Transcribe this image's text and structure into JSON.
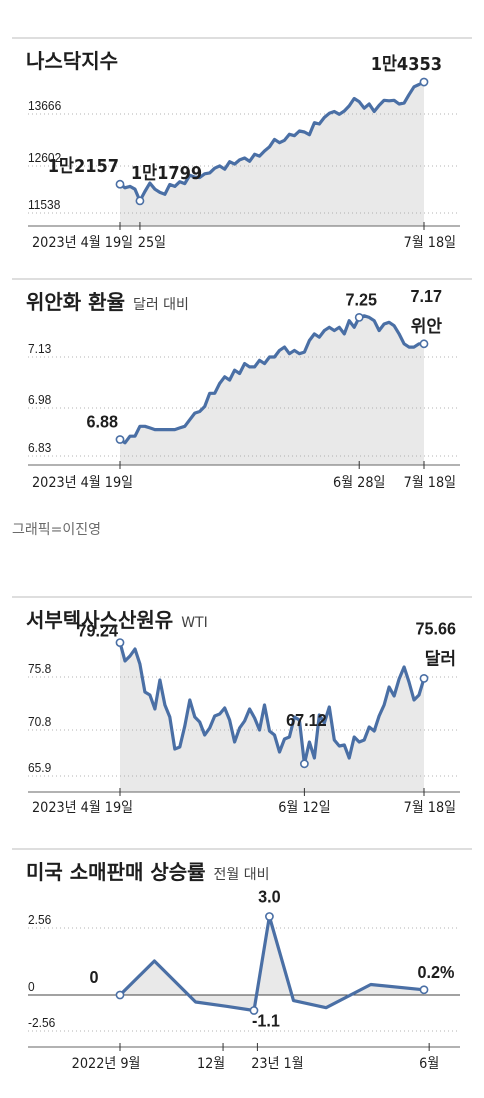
{
  "credit": "그래픽=이진영",
  "chart_data": [
    {
      "type": "area",
      "title": "나스닥지수",
      "subtitle": "",
      "ylim": [
        11200,
        14500
      ],
      "yticks": [
        13666,
        12602,
        11538
      ],
      "ytick_labels": [
        "13666",
        "12602",
        "11538"
      ],
      "x_labels": [
        {
          "text": "2023년 4월 19일",
          "x": 0
        },
        {
          "text": "25일",
          "x": 4
        },
        {
          "text": "7월 18일",
          "x": 61
        }
      ],
      "values": [
        12157,
        12080,
        12110,
        12050,
        11799,
        12000,
        12180,
        12050,
        11980,
        11940,
        12150,
        12110,
        12210,
        12170,
        12350,
        12310,
        12300,
        12380,
        12400,
        12500,
        12550,
        12480,
        12640,
        12590,
        12680,
        12720,
        12650,
        12800,
        12760,
        12870,
        12960,
        13120,
        13050,
        13100,
        13230,
        13200,
        13300,
        13280,
        13220,
        13480,
        13450,
        13590,
        13680,
        13720,
        13660,
        13730,
        13840,
        14000,
        13930,
        13790,
        13880,
        13720,
        13850,
        13960,
        13950,
        13960,
        13880,
        13900,
        14080,
        14250,
        14300,
        14353
      ],
      "annotations": [
        {
          "text": "1만2157",
          "x": 0,
          "y": 12157
        },
        {
          "text": "1만1799",
          "x": 4,
          "y": 11799
        },
        {
          "text": "1만4353",
          "x": 61,
          "y": 14353
        }
      ]
    },
    {
      "type": "area",
      "title": "위안화 환율",
      "subtitle": "달러 대비",
      "ylim": [
        6.8,
        7.33
      ],
      "yticks": [
        7.13,
        6.98,
        6.83
      ],
      "ytick_labels": [
        "7.13",
        "6.98",
        "6.83"
      ],
      "x_labels": [
        {
          "text": "2023년 4월 19일",
          "x": 0
        },
        {
          "text": "6월 28일",
          "x": 48
        },
        {
          "text": "7월 18일",
          "x": 61
        }
      ],
      "values": [
        6.88,
        6.87,
        6.89,
        6.89,
        6.92,
        6.92,
        6.915,
        6.91,
        6.91,
        6.91,
        6.91,
        6.91,
        6.915,
        6.92,
        6.94,
        6.96,
        6.965,
        6.98,
        7.02,
        7.02,
        7.05,
        7.07,
        7.06,
        7.09,
        7.08,
        7.11,
        7.1,
        7.1,
        7.12,
        7.11,
        7.13,
        7.13,
        7.15,
        7.16,
        7.14,
        7.15,
        7.14,
        7.145,
        7.18,
        7.2,
        7.19,
        7.21,
        7.22,
        7.21,
        7.22,
        7.2,
        7.24,
        7.22,
        7.25,
        7.255,
        7.25,
        7.24,
        7.21,
        7.23,
        7.235,
        7.225,
        7.2,
        7.17,
        7.16,
        7.16,
        7.17,
        7.17
      ],
      "annotations": [
        {
          "text": "6.88",
          "x": 0,
          "y": 6.88
        },
        {
          "text": "7.25",
          "x": 48,
          "y": 7.25
        },
        {
          "text": "7.17",
          "x": 61,
          "y": 7.17
        },
        {
          "text": "위안",
          "x": 61,
          "y": 7.17
        }
      ]
    },
    {
      "type": "area",
      "title": "서부텍사스산원유",
      "subtitle": "WTI",
      "ylim": [
        64.0,
        80.5
      ],
      "yticks": [
        75.8,
        70.8,
        65.9
      ],
      "ytick_labels": [
        "75.8",
        "70.8",
        "65.9"
      ],
      "x_labels": [
        {
          "text": "2023년 4월 19일",
          "x": 0
        },
        {
          "text": "6월 12일",
          "x": 37
        },
        {
          "text": "7월 18일",
          "x": 61
        }
      ],
      "values": [
        79.24,
        77.4,
        77.9,
        78.6,
        77.1,
        74.3,
        74.0,
        72.6,
        75.5,
        73.0,
        71.8,
        68.6,
        68.8,
        70.9,
        73.5,
        71.8,
        71.3,
        70.0,
        70.7,
        71.9,
        72.1,
        72.7,
        71.5,
        69.3,
        70.7,
        71.4,
        72.6,
        71.7,
        70.5,
        73.0,
        70.4,
        70.0,
        68.3,
        69.6,
        69.8,
        71.8,
        71.5,
        67.12,
        69.3,
        67.7,
        72.0,
        71.2,
        72.8,
        69.5,
        68.9,
        69.0,
        67.7,
        69.8,
        69.3,
        69.5,
        70.8,
        70.4,
        71.9,
        73.0,
        74.8,
        73.9,
        75.6,
        76.8,
        75.3,
        73.5,
        74.0,
        75.66
      ],
      "annotations": [
        {
          "text": "79.24",
          "x": 0,
          "y": 79.24
        },
        {
          "text": "67.12",
          "x": 37,
          "y": 67.12
        },
        {
          "text": "75.66",
          "x": 61,
          "y": 75.66
        },
        {
          "text": "달러",
          "x": 61,
          "y": 75.66
        }
      ]
    },
    {
      "type": "area",
      "title": "미국 소매판매 상승률",
      "subtitle": "전월 대비",
      "ylim": [
        -2.56,
        3.2
      ],
      "yticks": [
        2.56,
        0,
        -2.56
      ],
      "ytick_labels": [
        "2.56",
        "0",
        "-2.56"
      ],
      "x_labels": [
        {
          "text": "2022년 9월",
          "x": 0
        },
        {
          "text": "12월",
          "x": 3
        },
        {
          "text": "23년 1월",
          "x": 4
        },
        {
          "text": "6월",
          "x": 9
        }
      ],
      "values": [
        0.0,
        1.3,
        -0.5,
        -0.8,
        -1.1,
        3.0,
        -0.4,
        -0.9,
        0.4,
        0.2
      ],
      "x_positions": [
        0,
        1,
        2.2,
        3.1,
        3.9,
        4.35,
        5.05,
        6.0,
        7.3,
        8.85
      ],
      "annotations": [
        {
          "text": "0",
          "x": 0,
          "y": 0.0
        },
        {
          "text": "-1.1",
          "x": 3.9,
          "y": -1.1
        },
        {
          "text": "3.0",
          "x": 4.35,
          "y": 3.0
        },
        {
          "text": "0.2%",
          "x": 8.85,
          "y": 0.2
        }
      ]
    }
  ]
}
